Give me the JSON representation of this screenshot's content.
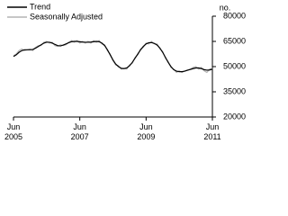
{
  "chart_data": {
    "type": "line",
    "y_unit_label": "no.",
    "x": [
      "2005-06",
      "2005-07",
      "2005-08",
      "2005-09",
      "2005-10",
      "2005-11",
      "2005-12",
      "2006-01",
      "2006-02",
      "2006-03",
      "2006-04",
      "2006-05",
      "2006-06",
      "2006-07",
      "2006-08",
      "2006-09",
      "2006-10",
      "2006-11",
      "2006-12",
      "2007-01",
      "2007-02",
      "2007-03",
      "2007-04",
      "2007-05",
      "2007-06",
      "2007-07",
      "2007-08",
      "2007-09",
      "2007-10",
      "2007-11",
      "2007-12",
      "2008-01",
      "2008-02",
      "2008-03",
      "2008-04",
      "2008-05",
      "2008-06",
      "2008-07",
      "2008-08",
      "2008-09",
      "2008-10",
      "2008-11",
      "2008-12",
      "2009-01",
      "2009-02",
      "2009-03",
      "2009-04",
      "2009-05",
      "2009-06",
      "2009-07",
      "2009-08",
      "2009-09",
      "2009-10",
      "2009-11",
      "2009-12",
      "2010-01",
      "2010-02",
      "2010-03",
      "2010-04",
      "2010-05",
      "2010-06",
      "2010-07",
      "2010-08",
      "2010-09",
      "2010-10",
      "2010-11",
      "2010-12",
      "2011-01",
      "2011-02",
      "2011-03",
      "2011-04",
      "2011-05",
      "2011-06"
    ],
    "series": [
      {
        "name": "Trend",
        "color": "#000000",
        "values": [
          56000,
          57000,
          58500,
          59500,
          60000,
          60000,
          60000,
          60200,
          61000,
          62000,
          63000,
          64000,
          64500,
          64500,
          64000,
          63200,
          62500,
          62300,
          62800,
          63500,
          64200,
          64800,
          65000,
          65000,
          64800,
          64600,
          64500,
          64500,
          64600,
          64800,
          65000,
          64800,
          64000,
          62500,
          60000,
          57000,
          54000,
          51500,
          50000,
          49000,
          48800,
          49200,
          50500,
          52500,
          55000,
          57500,
          60000,
          62000,
          63500,
          64200,
          64300,
          63800,
          62800,
          61000,
          58500,
          55500,
          52500,
          50000,
          48200,
          47300,
          47000,
          47000,
          47300,
          47800,
          48300,
          48800,
          49200,
          49200,
          48800,
          48200,
          47900,
          48000,
          48500
        ]
      },
      {
        "name": "Seasonally Adjusted",
        "color": "#b3b3b3",
        "values": [
          56500,
          57500,
          59500,
          60500,
          59500,
          60000,
          60500,
          59500,
          61500,
          62500,
          62500,
          64500,
          65000,
          64000,
          64500,
          62500,
          62000,
          63000,
          62500,
          63000,
          64500,
          65500,
          64500,
          65500,
          64000,
          65000,
          64000,
          65000,
          64000,
          65500,
          64500,
          65500,
          63500,
          63000,
          59500,
          57500,
          53500,
          51000,
          50500,
          48500,
          49000,
          48500,
          51000,
          52000,
          55500,
          57000,
          60500,
          61500,
          64000,
          63500,
          65000,
          63500,
          63500,
          60500,
          59000,
          55000,
          53000,
          49500,
          48500,
          46500,
          47500,
          46500,
          47500,
          48000,
          48500,
          49500,
          50000,
          48500,
          49500,
          47500,
          46500,
          48500,
          49000
        ]
      }
    ],
    "ylim": [
      20000,
      80000
    ],
    "yticks": [
      20000,
      35000,
      50000,
      65000,
      80000
    ],
    "xticks": [
      {
        "value": "2005-06",
        "label": "Jun 2005"
      },
      {
        "value": "2007-06",
        "label": "Jun 2007"
      },
      {
        "value": "2009-06",
        "label": "Jun 2009"
      },
      {
        "value": "2011-06",
        "label": "Jun 2011"
      }
    ],
    "legend": "top-left"
  }
}
